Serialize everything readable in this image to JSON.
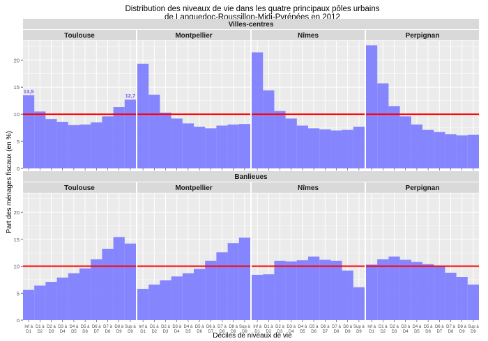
{
  "chart_data": {
    "type": "bar",
    "title_line1": "Distribution des niveaux de vie dans les quatre principaux pôles urbains",
    "title_line2": "de Languedoc-Roussillon-Midi-Pyrénées en 2012",
    "xlabel": "Déciles de niveaux de vie",
    "ylabel": "Part des ménages fiscaux (en %)",
    "ylim": [
      0,
      23.5
    ],
    "yticks": [
      0,
      5,
      10,
      15,
      20
    ],
    "reference_line": 10,
    "categories": [
      [
        "Inf à",
        "D1"
      ],
      [
        "D1 à",
        "D2"
      ],
      [
        "D2 à",
        "D3"
      ],
      [
        "D3 à",
        "D4"
      ],
      [
        "D4 à",
        "D5"
      ],
      [
        "D5 à",
        "D6"
      ],
      [
        "D6 à",
        "D7"
      ],
      [
        "D7 à",
        "D8"
      ],
      [
        "D8 à",
        "D9"
      ],
      [
        "Sup à",
        "D9"
      ]
    ],
    "colors": {
      "bar": "#8080ff",
      "line": "#ff0000",
      "panel": "#ebebeb",
      "strip": "#d9d9d9",
      "annotation": "#7b4ff0"
    },
    "rows": [
      {
        "label": "Villes-centres",
        "panels": [
          {
            "label": "Toulouse",
            "values": [
              13.5,
              10.5,
              9.1,
              8.6,
              8.0,
              8.1,
              8.5,
              9.6,
              11.3,
              12.7
            ],
            "annotations": [
              {
                "index": 0,
                "text": "13,5"
              },
              {
                "index": 9,
                "text": "12,7"
              }
            ]
          },
          {
            "label": "Montpellier",
            "values": [
              19.3,
              13.6,
              10.3,
              9.2,
              8.3,
              7.7,
              7.4,
              7.9,
              8.1,
              8.2
            ],
            "annotations": []
          },
          {
            "label": "Nîmes",
            "values": [
              21.4,
              14.4,
              10.6,
              9.2,
              7.9,
              7.4,
              7.2,
              7.0,
              7.1,
              7.7
            ],
            "annotations": []
          },
          {
            "label": "Perpignan",
            "values": [
              22.7,
              15.7,
              11.5,
              9.6,
              8.1,
              7.1,
              6.7,
              6.3,
              6.1,
              6.2
            ],
            "annotations": []
          }
        ]
      },
      {
        "label": "Banlieues",
        "panels": [
          {
            "label": "Toulouse",
            "values": [
              5.6,
              6.4,
              7.1,
              7.9,
              8.7,
              9.6,
              11.3,
              13.2,
              15.4,
              14.2
            ],
            "annotations": []
          },
          {
            "label": "Montpellier",
            "values": [
              5.8,
              6.6,
              7.4,
              8.1,
              8.7,
              9.5,
              11.0,
              12.6,
              14.3,
              15.3
            ],
            "annotations": []
          },
          {
            "label": "Nîmes",
            "values": [
              8.4,
              8.5,
              11.0,
              10.9,
              11.1,
              11.8,
              11.2,
              11.0,
              9.2,
              6.1
            ],
            "annotations": []
          },
          {
            "label": "Perpignan",
            "values": [
              10.3,
              11.3,
              11.8,
              11.2,
              10.8,
              10.4,
              9.9,
              8.8,
              8.0,
              6.6
            ],
            "annotations": []
          }
        ]
      }
    ]
  }
}
